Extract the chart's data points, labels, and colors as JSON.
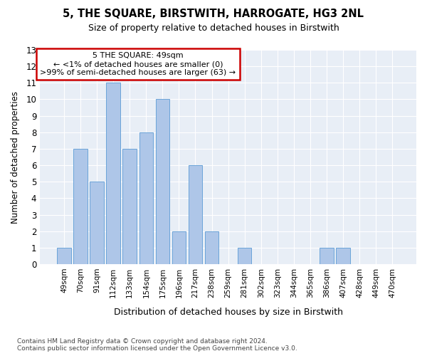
{
  "title": "5, THE SQUARE, BIRSTWITH, HARROGATE, HG3 2NL",
  "subtitle": "Size of property relative to detached houses in Birstwith",
  "xlabel": "Distribution of detached houses by size in Birstwith",
  "ylabel": "Number of detached properties",
  "categories": [
    "49sqm",
    "70sqm",
    "91sqm",
    "112sqm",
    "133sqm",
    "154sqm",
    "175sqm",
    "196sqm",
    "217sqm",
    "238sqm",
    "259sqm",
    "281sqm",
    "302sqm",
    "323sqm",
    "344sqm",
    "365sqm",
    "386sqm",
    "407sqm",
    "428sqm",
    "449sqm",
    "470sqm"
  ],
  "values": [
    1,
    7,
    5,
    11,
    7,
    8,
    10,
    2,
    6,
    2,
    0,
    1,
    0,
    0,
    0,
    0,
    1,
    1,
    0,
    0,
    0
  ],
  "bar_color": "#aec6e8",
  "bar_edgecolor": "#5b9bd5",
  "ylim": [
    0,
    13
  ],
  "yticks": [
    0,
    1,
    2,
    3,
    4,
    5,
    6,
    7,
    8,
    9,
    10,
    11,
    12,
    13
  ],
  "annotation_title": "5 THE SQUARE: 49sqm",
  "annotation_line1": "← <1% of detached houses are smaller (0)",
  "annotation_line2": ">99% of semi-detached houses are larger (63) →",
  "annotation_box_color": "#ffffff",
  "annotation_box_edgecolor": "#cc0000",
  "bg_color": "#e8eef6",
  "grid_color": "#ffffff",
  "fig_bg": "#ffffff",
  "footer1": "Contains HM Land Registry data © Crown copyright and database right 2024.",
  "footer2": "Contains public sector information licensed under the Open Government Licence v3.0."
}
